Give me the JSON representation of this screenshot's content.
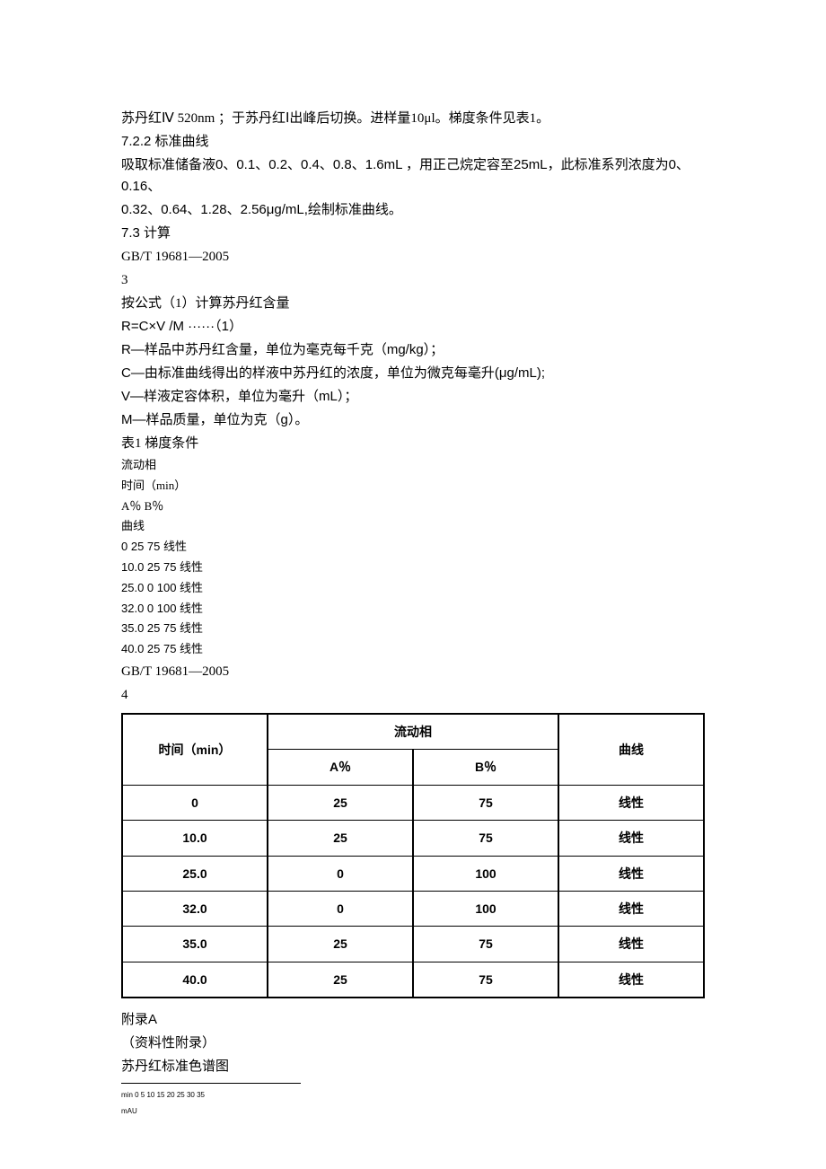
{
  "lines": {
    "l1": "苏丹红Ⅳ 520nm ；于苏丹红Ⅰ出峰后切换。进样量10μl。梯度条件见表1。",
    "l2": "7.2.2 标准曲线",
    "l3": "吸取标准储备液0、0.1、0.2、0.4、0.8、1.6mL ，用正己烷定容至25mL，此标准系列浓度为0、0.16、",
    "l4": "0.32、0.64、1.28、2.56μg/mL,绘制标准曲线。",
    "l5": "7.3 计算",
    "l6": "GB/T 19681—2005",
    "l7": "3",
    "l8": "按公式（1）计算苏丹红含量",
    "l9": "R=C×V /M ······（1）",
    "l10": "R—样品中苏丹红含量，单位为毫克每千克（mg/kg）；",
    "l11": "C—由标准曲线得出的样液中苏丹红的浓度，单位为微克每毫升(μg/mL);",
    "l12": "V—样液定容体积，单位为毫升（mL）；",
    "l13": "M—样品质量，单位为克（g）。",
    "l14": "表1 梯度条件",
    "l15": "流动相",
    "l16": "时间（min）",
    "l17": "A％ B％",
    "l18": "曲线",
    "l19": "0 25 75 线性",
    "l20": "10.0 25 75 线性",
    "l21": "25.0 0 100 线性",
    "l22": "32.0 0 100 线性",
    "l23": "35.0 25 75 线性",
    "l24": "40.0 25 75 线性",
    "l25": "GB/T 19681—2005",
    "l26": "4"
  },
  "table": {
    "headers": {
      "time": "时间（min）",
      "mobile_phase": "流动相",
      "a": "A％",
      "b": "B％",
      "curve": "曲线"
    },
    "rows": [
      {
        "time": "0",
        "a": "25",
        "b": "75",
        "curve": "线性"
      },
      {
        "time": "10.0",
        "a": "25",
        "b": "75",
        "curve": "线性"
      },
      {
        "time": "25.0",
        "a": "0",
        "b": "100",
        "curve": "线性"
      },
      {
        "time": "32.0",
        "a": "0",
        "b": "100",
        "curve": "线性"
      },
      {
        "time": "35.0",
        "a": "25",
        "b": "75",
        "curve": "线性"
      },
      {
        "time": "40.0",
        "a": "25",
        "b": "75",
        "curve": "线性"
      }
    ]
  },
  "appendix": {
    "l1": "附录A",
    "l2": "（资料性附录）",
    "l3": "苏丹红标准色谱图"
  },
  "tiny": {
    "l1": "min 0 5 10 15 20 25 30 35",
    "l2": "mAU"
  }
}
